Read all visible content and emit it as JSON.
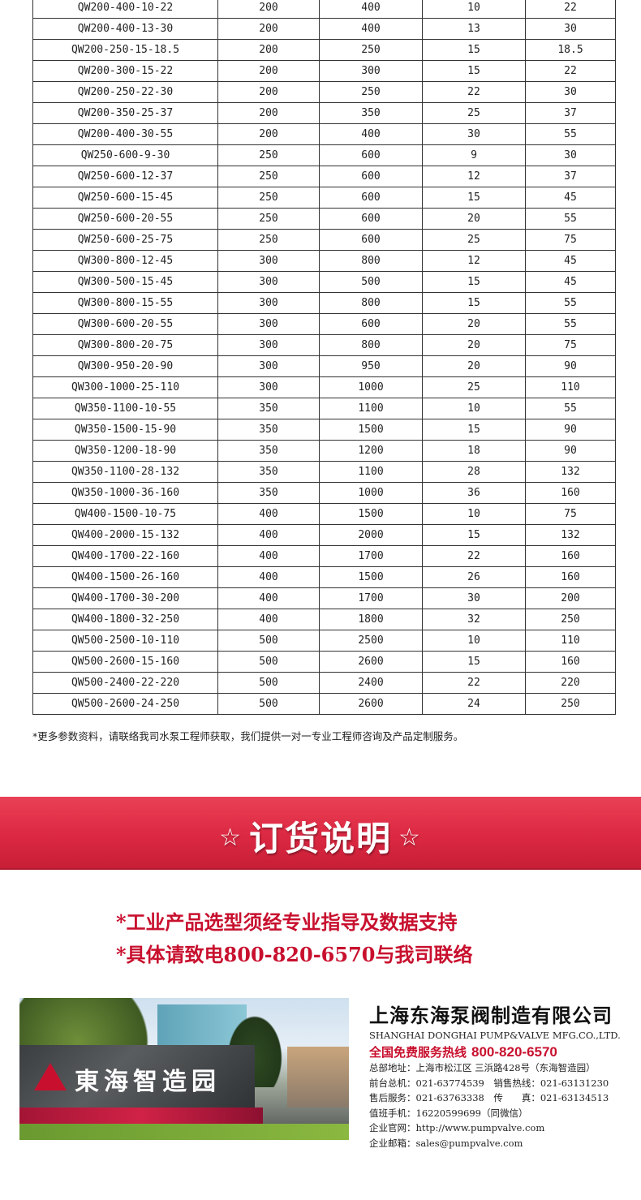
{
  "table": {
    "rows": [
      [
        "QW200-400-10-22",
        "200",
        "400",
        "10",
        "22"
      ],
      [
        "QW200-400-13-30",
        "200",
        "400",
        "13",
        "30"
      ],
      [
        "QW200-250-15-18.5",
        "200",
        "250",
        "15",
        "18.5"
      ],
      [
        "QW200-300-15-22",
        "200",
        "300",
        "15",
        "22"
      ],
      [
        "QW200-250-22-30",
        "200",
        "250",
        "22",
        "30"
      ],
      [
        "QW200-350-25-37",
        "200",
        "350",
        "25",
        "37"
      ],
      [
        "QW200-400-30-55",
        "200",
        "400",
        "30",
        "55"
      ],
      [
        "QW250-600-9-30",
        "250",
        "600",
        "9",
        "30"
      ],
      [
        "QW250-600-12-37",
        "250",
        "600",
        "12",
        "37"
      ],
      [
        "QW250-600-15-45",
        "250",
        "600",
        "15",
        "45"
      ],
      [
        "QW250-600-20-55",
        "250",
        "600",
        "20",
        "55"
      ],
      [
        "QW250-600-25-75",
        "250",
        "600",
        "25",
        "75"
      ],
      [
        "QW300-800-12-45",
        "300",
        "800",
        "12",
        "45"
      ],
      [
        "QW300-500-15-45",
        "300",
        "500",
        "15",
        "45"
      ],
      [
        "QW300-800-15-55",
        "300",
        "800",
        "15",
        "55"
      ],
      [
        "QW300-600-20-55",
        "300",
        "600",
        "20",
        "55"
      ],
      [
        "QW300-800-20-75",
        "300",
        "800",
        "20",
        "75"
      ],
      [
        "QW300-950-20-90",
        "300",
        "950",
        "20",
        "90"
      ],
      [
        "QW300-1000-25-110",
        "300",
        "1000",
        "25",
        "110"
      ],
      [
        "QW350-1100-10-55",
        "350",
        "1100",
        "10",
        "55"
      ],
      [
        "QW350-1500-15-90",
        "350",
        "1500",
        "15",
        "90"
      ],
      [
        "QW350-1200-18-90",
        "350",
        "1200",
        "18",
        "90"
      ],
      [
        "QW350-1100-28-132",
        "350",
        "1100",
        "28",
        "132"
      ],
      [
        "QW350-1000-36-160",
        "350",
        "1000",
        "36",
        "160"
      ],
      [
        "QW400-1500-10-75",
        "400",
        "1500",
        "10",
        "75"
      ],
      [
        "QW400-2000-15-132",
        "400",
        "2000",
        "15",
        "132"
      ],
      [
        "QW400-1700-22-160",
        "400",
        "1700",
        "22",
        "160"
      ],
      [
        "QW400-1500-26-160",
        "400",
        "1500",
        "26",
        "160"
      ],
      [
        "QW400-1700-30-200",
        "400",
        "1700",
        "30",
        "200"
      ],
      [
        "QW400-1800-32-250",
        "400",
        "1800",
        "32",
        "250"
      ],
      [
        "QW500-2500-10-110",
        "500",
        "2500",
        "10",
        "110"
      ],
      [
        "QW500-2600-15-160",
        "500",
        "2600",
        "15",
        "160"
      ],
      [
        "QW500-2400-22-220",
        "500",
        "2400",
        "22",
        "220"
      ],
      [
        "QW500-2600-24-250",
        "500",
        "2600",
        "24",
        "250"
      ]
    ]
  },
  "footnote": "*更多参数资料，请联络我司水泵工程师获取，我们提供一对一专业工程师咨询及产品定制服务。",
  "banner": {
    "star": "☆",
    "title": "订货说明",
    "color": "#de2a44"
  },
  "notes": [
    "*工业产品选型须经专业指导及数据支持",
    "*具体请致电800-820-6570与我司联络"
  ],
  "photo": {
    "sign_text": "東海智造园"
  },
  "company": {
    "cn_name": "上海东海泵阀制造有限公司",
    "en_name": "SHANGHAI DONGHAI PUMP&VALVE MFG.CO.,LTD.",
    "hotline_label": "全国免费服务热线",
    "hotline": "800-820-6570",
    "info": [
      "总部地址：上海市松江区 三浜路428号（东海智造园）",
      "前台总机：021-63774539　销售热线：021-63131230",
      "售后服务：021-63763338　传　　真：021-63134513",
      "值班手机：16220599699（同微信）",
      "企业官网：http://www.pumpvalve.com",
      "企业邮箱：sales@pumpvalve.com"
    ],
    "accent": "#c8102e"
  }
}
